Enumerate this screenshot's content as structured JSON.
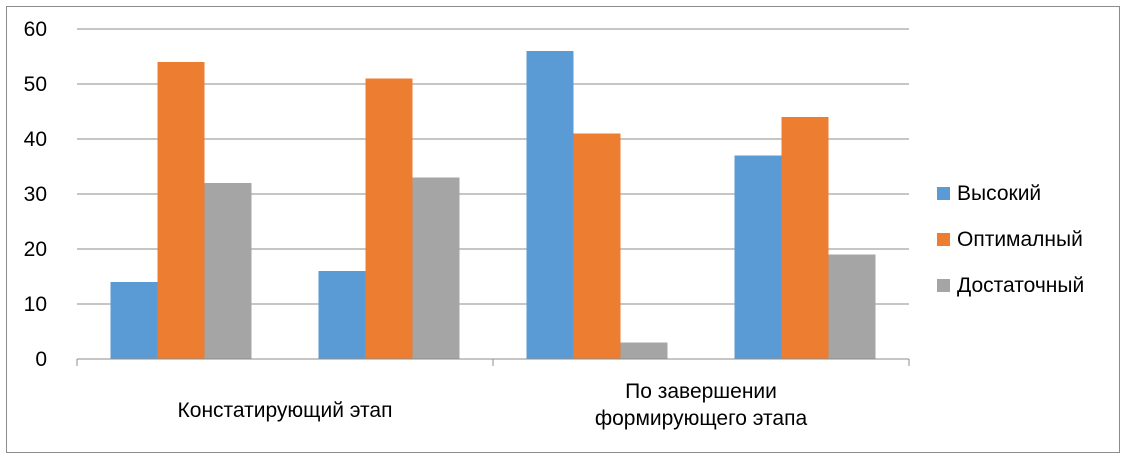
{
  "chart_data": {
    "type": "bar",
    "title": "",
    "xlabel": "",
    "ylabel": "",
    "ylim": [
      0,
      60
    ],
    "yticks": [
      0,
      10,
      20,
      30,
      40,
      50,
      60
    ],
    "grid": true,
    "legend_position": "right",
    "groups": [
      {
        "label": "Констатирующий этап",
        "slots": 2
      },
      {
        "label": "По завершении\nформирующего этапа",
        "slots": 2
      }
    ],
    "categories": [
      "",
      "",
      "",
      ""
    ],
    "series": [
      {
        "name": "Высокий",
        "color": "#5b9bd5",
        "values": [
          14,
          16,
          56,
          37
        ]
      },
      {
        "name": "Оптималный",
        "color": "#ed7d31",
        "values": [
          54,
          51,
          41,
          44
        ]
      },
      {
        "name": "Достаточный",
        "color": "#a5a5a5",
        "values": [
          32,
          33,
          3,
          19
        ]
      }
    ]
  }
}
